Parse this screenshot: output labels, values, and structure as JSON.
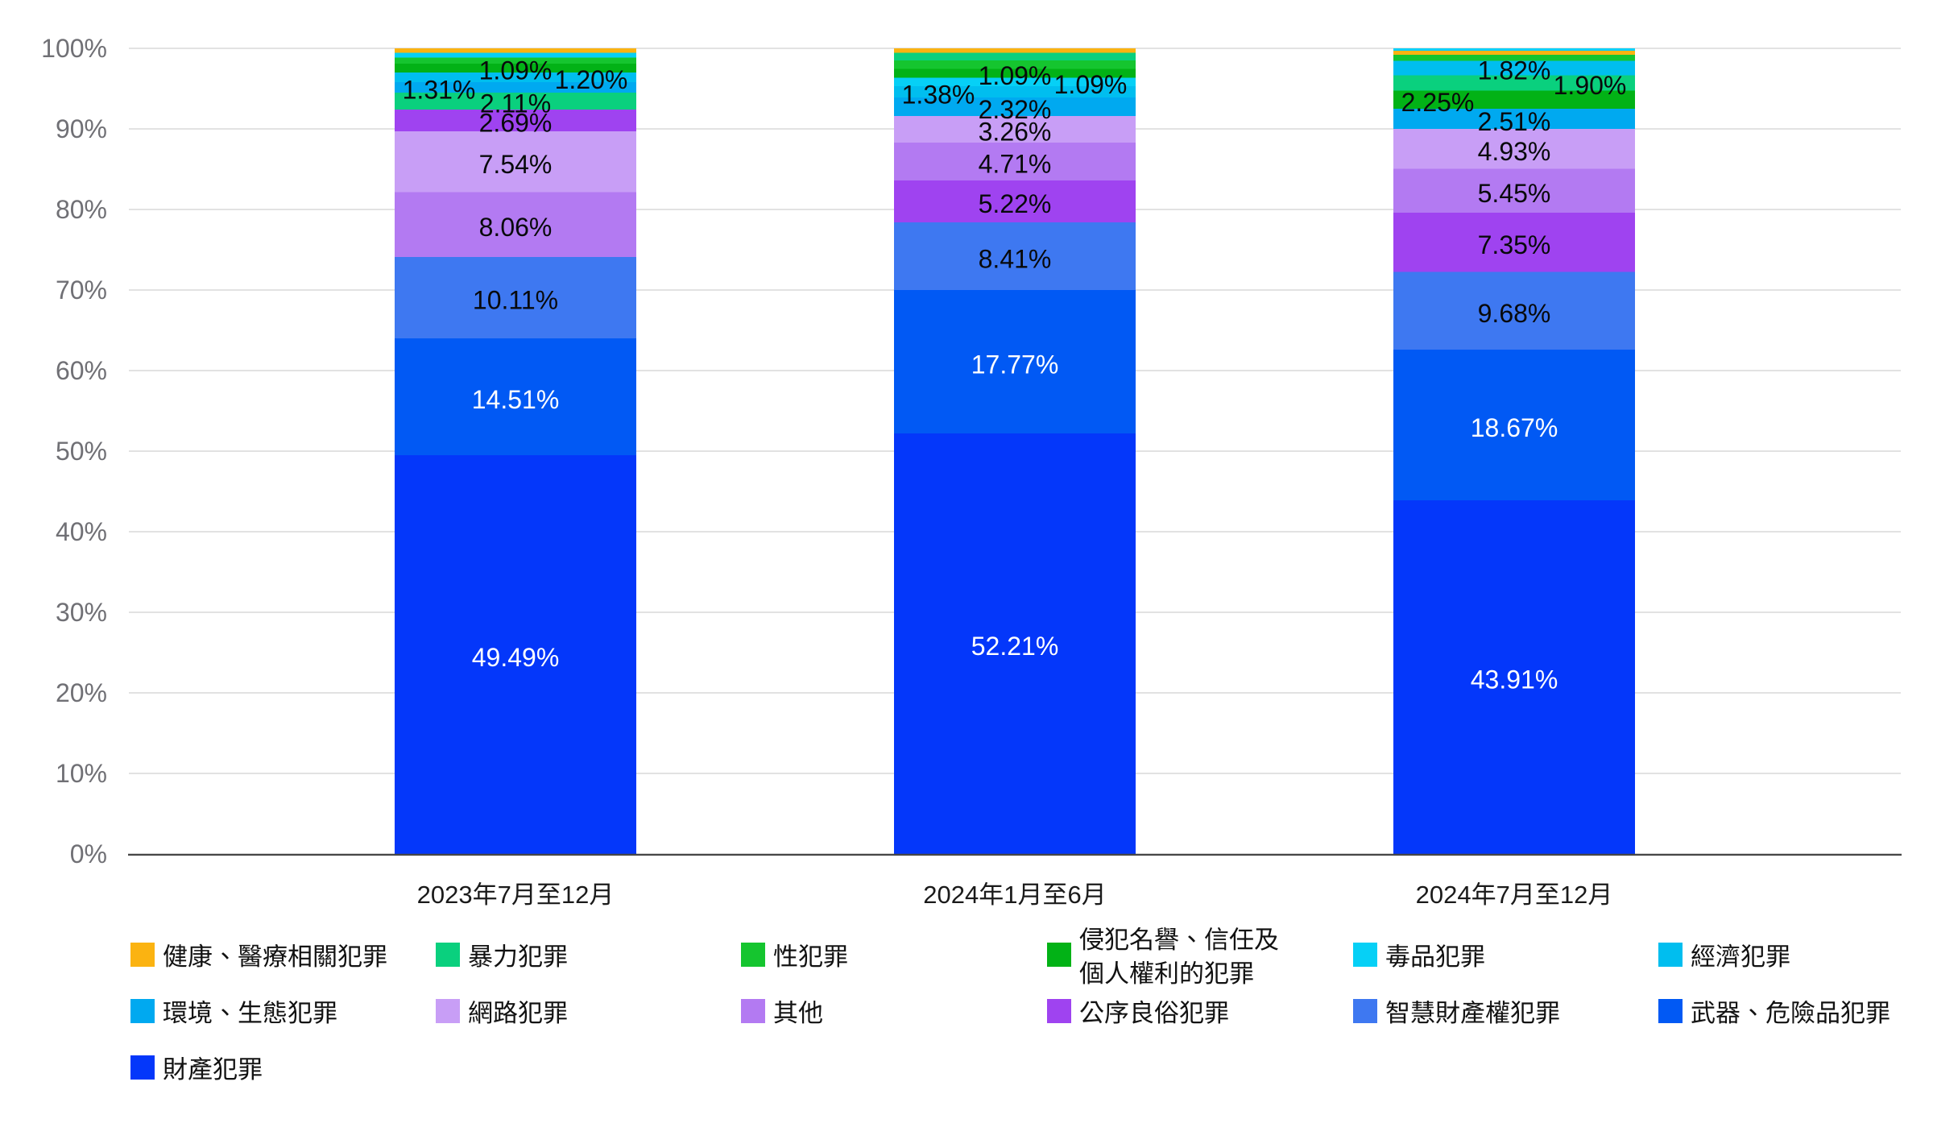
{
  "chart_data": {
    "type": "bar",
    "stacked": true,
    "percent_stacked": true,
    "categories": [
      "2023年7月至12月",
      "2024年1月至6月",
      "2024年7月至12月"
    ],
    "series": [
      {
        "name": "健康、醫療相關犯罪",
        "color": "#FBB311",
        "values": [
          0.57,
          0.54,
          0.49
        ]
      },
      {
        "name": "暴力犯罪",
        "color": "#0AD07E",
        "values": [
          2.11,
          0.96,
          1.9
        ]
      },
      {
        "name": "性犯罪",
        "color": "#15C52F",
        "values": [
          0.72,
          1.04,
          0.72
        ]
      },
      {
        "name": "侵犯名譽、信任及個人權利的犯罪",
        "legend_lines": [
          "侵犯名譽、信任及",
          "個人權利的犯罪"
        ],
        "color": "#02B216",
        "values": [
          1.09,
          1.09,
          2.25
        ]
      },
      {
        "name": "毒品犯罪",
        "color": "#06D0F6",
        "values": [
          0.6,
          1.09,
          0.32
        ]
      },
      {
        "name": "經濟犯罪",
        "color": "#00BEEF",
        "values": [
          1.2,
          1.38,
          1.82
        ]
      },
      {
        "name": "環境、生態犯罪",
        "color": "#00A9F0",
        "values": [
          1.31,
          2.32,
          2.51
        ]
      },
      {
        "name": "網路犯罪",
        "color": "#C89EF6",
        "values": [
          7.54,
          3.26,
          4.93
        ]
      },
      {
        "name": "其他",
        "color": "#B37AF2",
        "values": [
          8.06,
          4.71,
          5.45
        ]
      },
      {
        "name": "公序良俗犯罪",
        "color": "#9F43F0",
        "values": [
          2.69,
          5.22,
          7.35
        ]
      },
      {
        "name": "智慧財產權犯罪",
        "color": "#3E78F1",
        "values": [
          10.11,
          8.41,
          9.68
        ]
      },
      {
        "name": "武器、危險品犯罪",
        "color": "#0159F4",
        "values": [
          14.51,
          17.77,
          18.67
        ]
      },
      {
        "name": "財產犯罪",
        "color": "#0437FA",
        "values": [
          49.49,
          52.21,
          43.91
        ]
      }
    ],
    "y_axis": {
      "min": 0,
      "max": 100,
      "tick_step": 10,
      "tick_labels": [
        "0%",
        "10%",
        "20%",
        "30%",
        "40%",
        "50%",
        "60%",
        "70%",
        "80%",
        "90%",
        "100%"
      ]
    },
    "value_label_suffix": "%",
    "value_label_decimals": 2,
    "value_label_min": 1.05,
    "legend_position": "bottom",
    "grid": "horizontal"
  },
  "colors": {
    "background": "#FFFFFF",
    "grid": "#E2E2E2",
    "axis": "#474747",
    "y_tick_text": "#707075",
    "x_tick_text": "#1A1A1A",
    "value_label_dark": "#08090B",
    "value_label_light": "#FFFFFF",
    "legend_text": "#121212"
  }
}
